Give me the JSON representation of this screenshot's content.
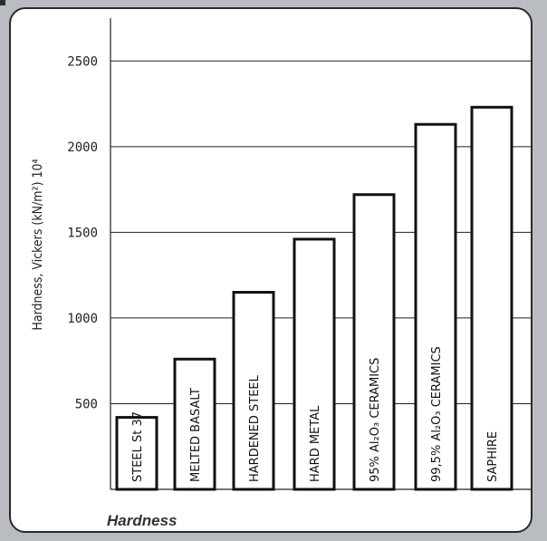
{
  "chart_data": {
    "type": "bar",
    "xlabel": "Hardness",
    "ylabel": "Hardness, Vickers (kN/m²) 10⁴",
    "ylim": [
      0,
      2750
    ],
    "yticks": [
      500,
      1000,
      1500,
      2000,
      2500
    ],
    "ytick_labels": [
      "500",
      "1000",
      "1500",
      "2000",
      "2500"
    ],
    "grid": "horizontal",
    "categories": [
      "STEEL St 37",
      "MELTED BASALT",
      "HARDENED STEEL",
      "HARD METAL",
      "95% Al₂O₃ CERAMICS",
      "99,5% Al₂O₃ CERAMICS",
      "SAPHIRE"
    ],
    "values": [
      420,
      760,
      1150,
      1460,
      1720,
      2130,
      2230
    ]
  },
  "colors": {
    "bar_fill": "#ffffff",
    "bar_stroke": "#111111",
    "grid": "#222222",
    "frame_background": "#b9bcc0"
  }
}
